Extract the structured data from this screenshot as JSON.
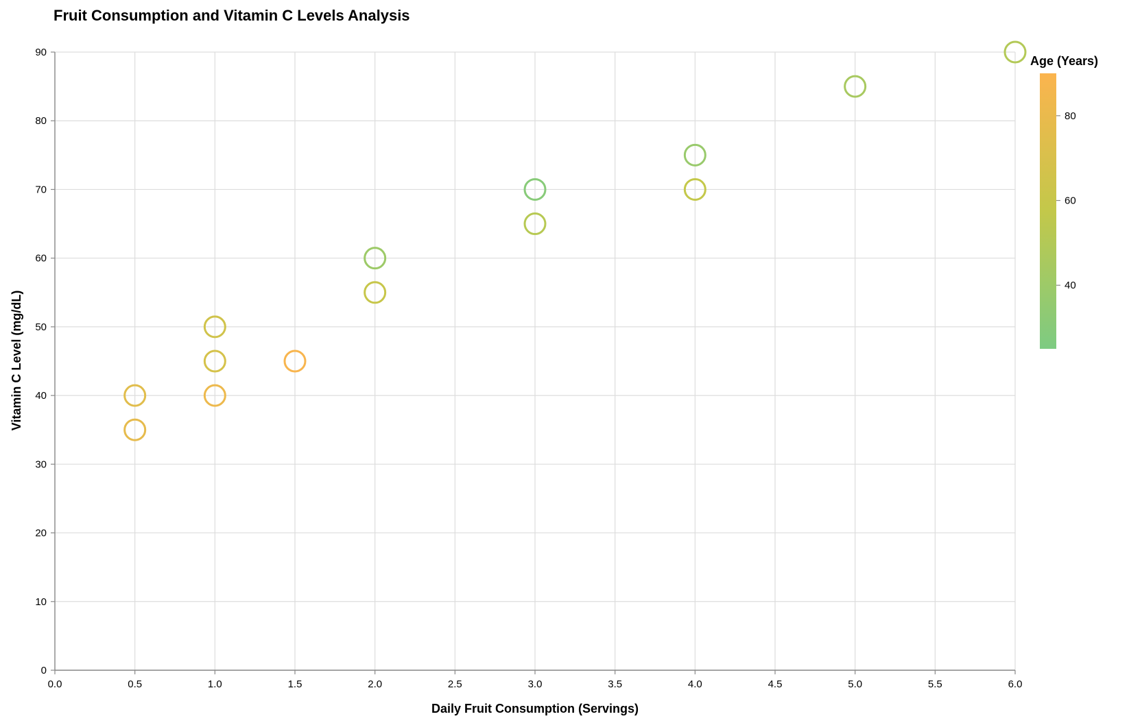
{
  "chart_data": {
    "type": "scatter",
    "title": "Fruit Consumption and Vitamin C Levels Analysis",
    "xlabel": "Daily Fruit Consumption (Servings)",
    "ylabel": "Vitamin C Level (mg/dL)",
    "xlim": [
      0,
      6
    ],
    "ylim": [
      0,
      90
    ],
    "x_ticks": [
      "0.0",
      "0.5",
      "1.0",
      "1.5",
      "2.0",
      "2.5",
      "3.0",
      "3.5",
      "4.0",
      "4.5",
      "5.0",
      "5.5",
      "6.0"
    ],
    "y_ticks": [
      "0",
      "10",
      "20",
      "30",
      "40",
      "50",
      "60",
      "70",
      "80",
      "90"
    ],
    "grid": true,
    "legend": {
      "title": "Age (Years)",
      "placement": "top-right",
      "type": "gradient",
      "range": [
        25,
        90
      ],
      "ticks": [
        "40",
        "60",
        "80"
      ],
      "color_low": "#7dcb82",
      "color_mid": "#c3c84a",
      "color_high": "#fbb44e"
    },
    "points": [
      {
        "x": 6.0,
        "y": 90,
        "age": 50
      },
      {
        "x": 5.0,
        "y": 85,
        "age": 45
      },
      {
        "x": 4.0,
        "y": 75,
        "age": 38
      },
      {
        "x": 4.0,
        "y": 70,
        "age": 58
      },
      {
        "x": 3.0,
        "y": 70,
        "age": 30
      },
      {
        "x": 3.0,
        "y": 65,
        "age": 52
      },
      {
        "x": 2.0,
        "y": 60,
        "age": 40
      },
      {
        "x": 2.0,
        "y": 55,
        "age": 60
      },
      {
        "x": 1.0,
        "y": 50,
        "age": 65
      },
      {
        "x": 1.0,
        "y": 45,
        "age": 68
      },
      {
        "x": 1.0,
        "y": 40,
        "age": 82
      },
      {
        "x": 1.5,
        "y": 45,
        "age": 88
      },
      {
        "x": 0.5,
        "y": 40,
        "age": 75
      },
      {
        "x": 0.5,
        "y": 35,
        "age": 78
      }
    ]
  }
}
